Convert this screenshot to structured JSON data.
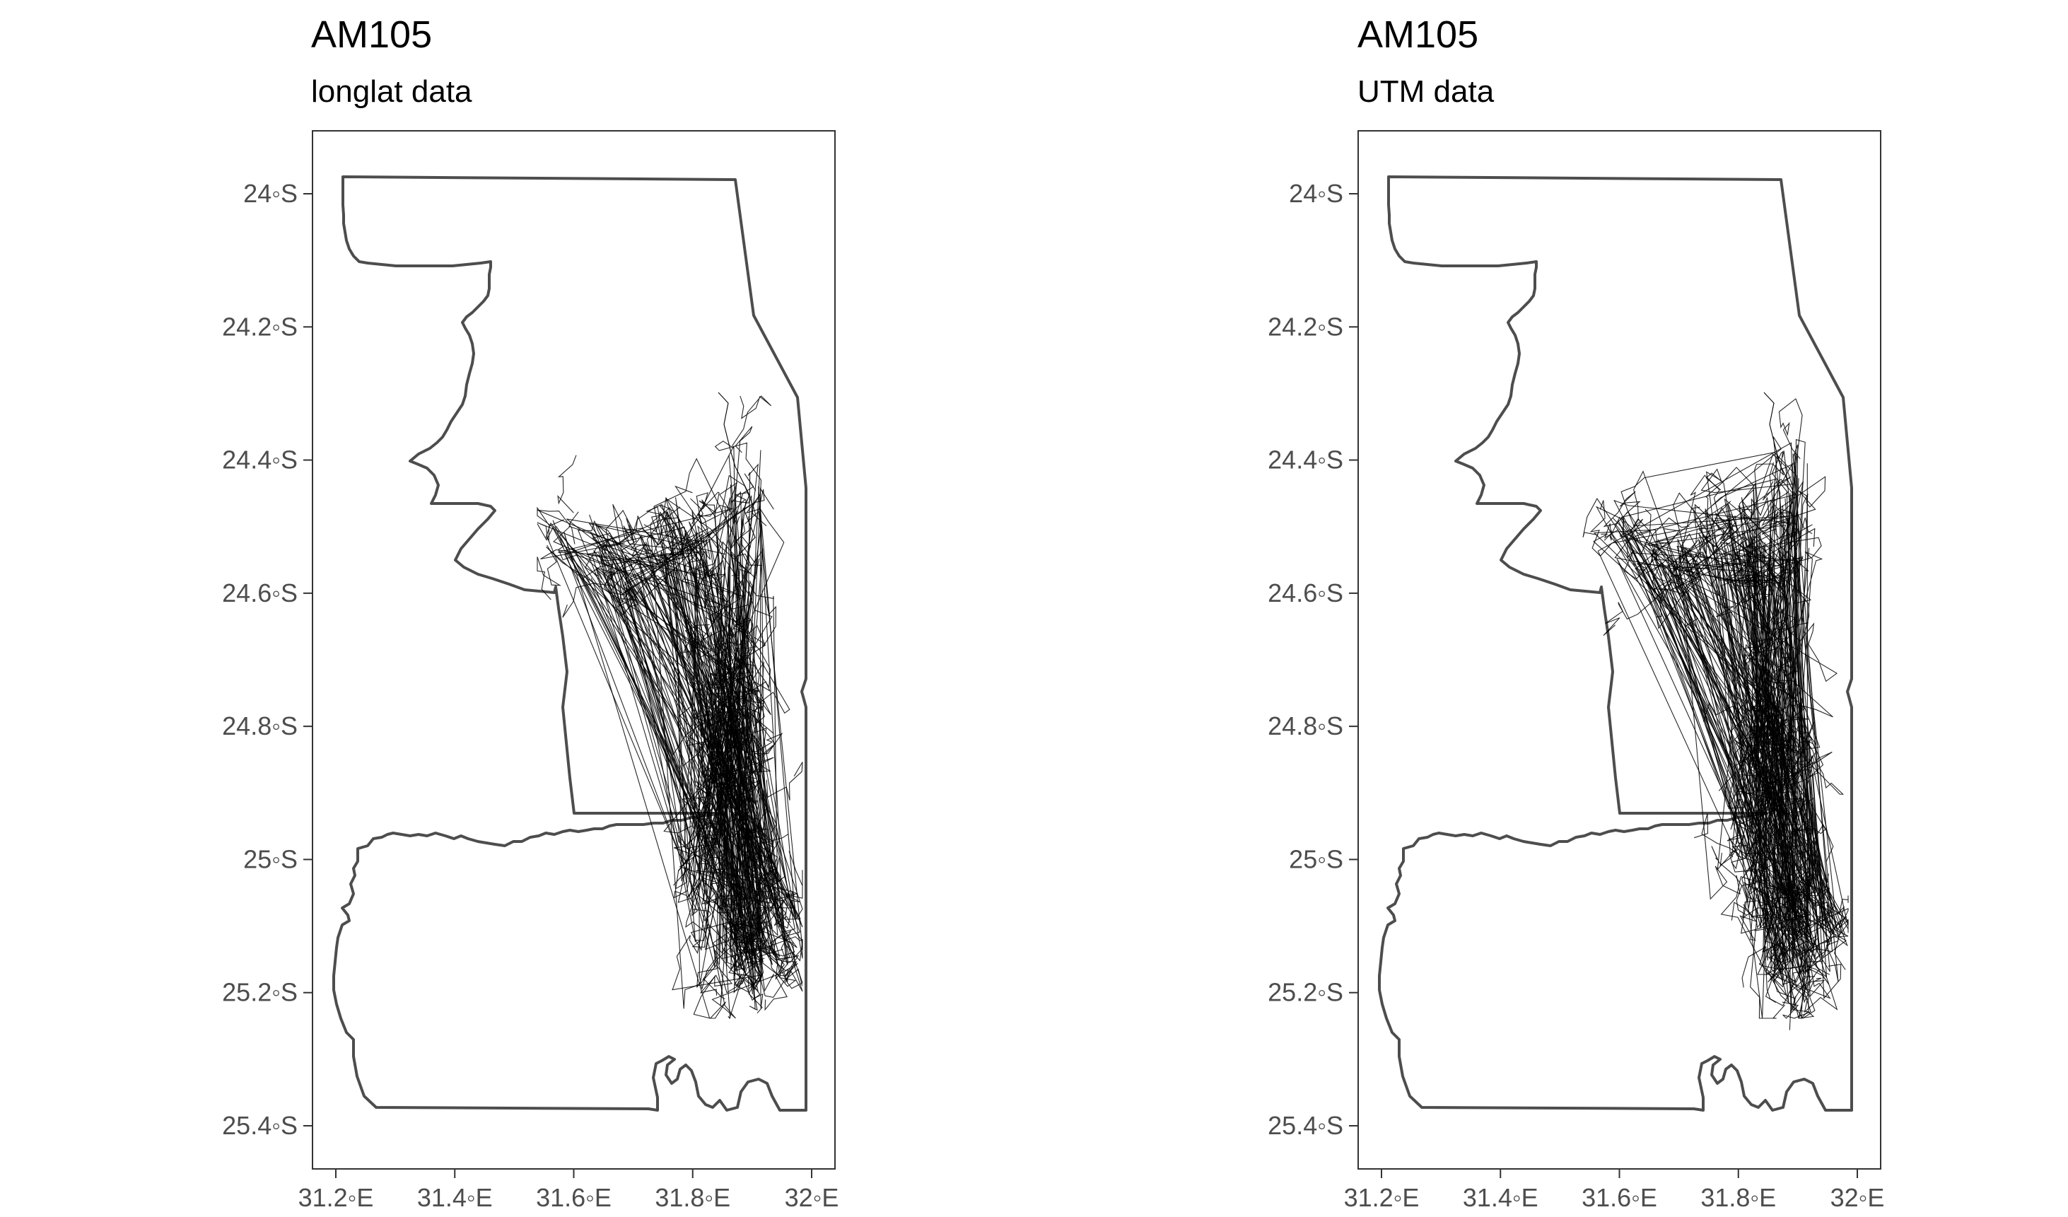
{
  "panels": [
    {
      "title": "AM105",
      "subtitle": "longlat data",
      "y_ticks": [
        "24◦S",
        "24.2◦S",
        "24.4◦S",
        "24.6◦S",
        "24.8◦S",
        "25◦S",
        "25.2◦S",
        "25.4◦S"
      ],
      "x_ticks": [
        "31.2◦E",
        "31.4◦E",
        "31.6◦E",
        "31.8◦E",
        "32◦E"
      ]
    },
    {
      "title": "AM105",
      "subtitle": "UTM data",
      "y_ticks": [
        "24◦S",
        "24.2◦S",
        "24.4◦S",
        "24.6◦S",
        "24.8◦S",
        "25◦S",
        "25.2◦S",
        "25.4◦S"
      ],
      "x_ticks": [
        "31.2◦E",
        "31.4◦E",
        "31.6◦E",
        "31.8◦E",
        "32◦E"
      ]
    }
  ],
  "map": {
    "boundary_color": "#4d4d4d",
    "track_color": "#000000",
    "x_range": [
      31.2,
      32.0
    ],
    "y_range": [
      -25.4,
      -24.0
    ]
  }
}
